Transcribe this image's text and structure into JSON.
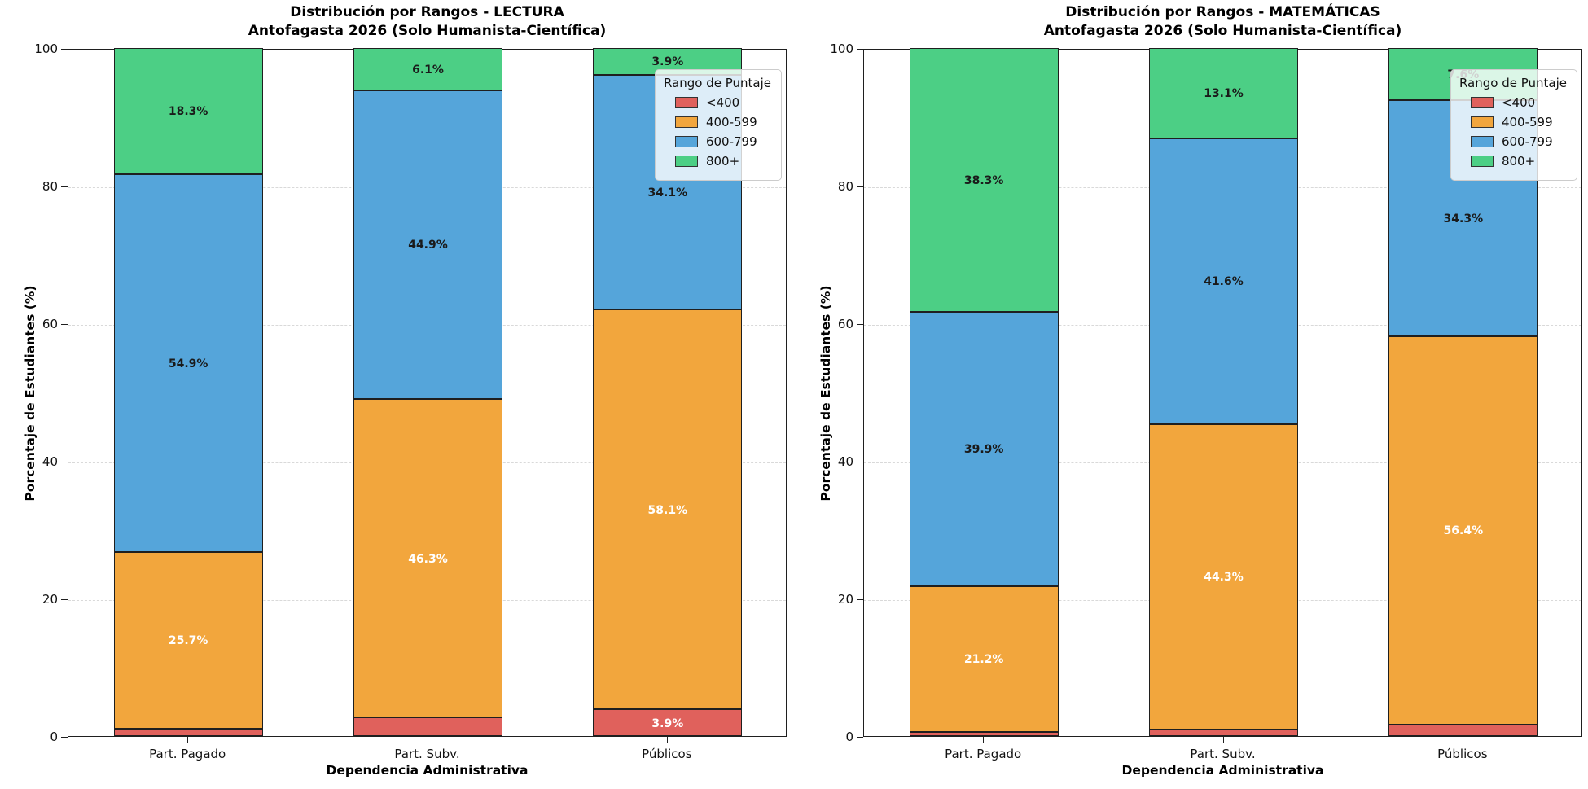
{
  "figure": {
    "background": "#ffffff",
    "grid_color": "#d9d9d9",
    "spine_color": "#1f1f1f"
  },
  "chart_data": [
    {
      "type": "stacked_bar",
      "title_line1": "Distribución por Rangos - LECTURA",
      "title_line2": "Antofagasta 2026 (Solo Humanista-Científica)",
      "xlabel": "Dependencia Administrativa",
      "ylabel": "Porcentaje de Estudiantes (%)",
      "legend_title": "Rango de Puntaje",
      "legend_position": "upper right",
      "grid": "horizontal dashed",
      "ylim": [
        0,
        100
      ],
      "yticks": [
        0,
        20,
        40,
        60,
        80,
        100
      ],
      "categories": [
        "Part. Pagado",
        "Part. Subv.",
        "Públicos"
      ],
      "series": [
        {
          "name": "<400",
          "color": "#e0615c",
          "label_color": "#ffffff",
          "values": [
            1.1,
            2.7,
            3.9
          ],
          "labels": [
            null,
            null,
            "3.9%"
          ]
        },
        {
          "name": "400-599",
          "color": "#f2a63d",
          "label_color": "#ffffff",
          "values": [
            25.7,
            46.3,
            58.1
          ],
          "labels": [
            "25.7%",
            "46.3%",
            "58.1%"
          ]
        },
        {
          "name": "600-799",
          "color": "#55a5da",
          "label_color": "#1a1a1a",
          "values": [
            54.9,
            44.9,
            34.1
          ],
          "labels": [
            "54.9%",
            "44.9%",
            "34.1%"
          ]
        },
        {
          "name": "800+",
          "color": "#4ccf85",
          "label_color": "#1a1a1a",
          "values": [
            18.3,
            6.1,
            3.9
          ],
          "labels": [
            "18.3%",
            "6.1%",
            "3.9%"
          ]
        }
      ]
    },
    {
      "type": "stacked_bar",
      "title_line1": "Distribución por Rangos - MATEMÁTICAS",
      "title_line2": "Antofagasta 2026 (Solo Humanista-Científica)",
      "xlabel": "Dependencia Administrativa",
      "ylabel": "Porcentaje de Estudiantes (%)",
      "legend_title": "Rango de Puntaje",
      "legend_position": "upper right",
      "grid": "horizontal dashed",
      "ylim": [
        0,
        100
      ],
      "yticks": [
        0,
        20,
        40,
        60,
        80,
        100
      ],
      "categories": [
        "Part. Pagado",
        "Part. Subv.",
        "Públicos"
      ],
      "series": [
        {
          "name": "<400",
          "color": "#e0615c",
          "label_color": "#ffffff",
          "values": [
            0.6,
            1.0,
            1.7
          ],
          "labels": [
            null,
            null,
            null
          ]
        },
        {
          "name": "400-599",
          "color": "#f2a63d",
          "label_color": "#ffffff",
          "values": [
            21.2,
            44.3,
            56.4
          ],
          "labels": [
            "21.2%",
            "44.3%",
            "56.4%"
          ]
        },
        {
          "name": "600-799",
          "color": "#55a5da",
          "label_color": "#1a1a1a",
          "values": [
            39.9,
            41.6,
            34.3
          ],
          "labels": [
            "39.9%",
            "41.6%",
            "34.3%"
          ]
        },
        {
          "name": "800+",
          "color": "#4ccf85",
          "label_color": "#1a1a1a",
          "values": [
            38.3,
            13.1,
            7.6
          ],
          "labels": [
            "38.3%",
            "13.1%",
            "7.6%"
          ]
        }
      ]
    }
  ]
}
